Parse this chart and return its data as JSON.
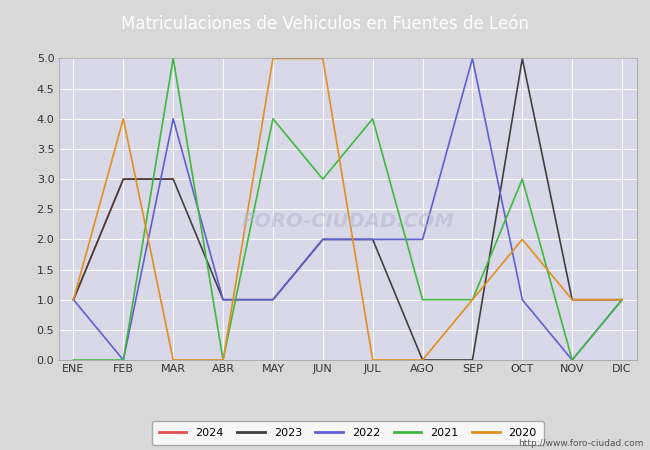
{
  "title": "Matriculaciones de Vehiculos en Fuentes de León",
  "months": [
    "ENE",
    "FEB",
    "MAR",
    "ABR",
    "MAY",
    "JUN",
    "JUL",
    "AGO",
    "SEP",
    "OCT",
    "NOV",
    "DIC"
  ],
  "series": {
    "2024": [
      1,
      3,
      3,
      null,
      null,
      null,
      null,
      null,
      null,
      null,
      null,
      null
    ],
    "2023": [
      1,
      3,
      3,
      1,
      1,
      2,
      2,
      0,
      0,
      5,
      1,
      1
    ],
    "2022": [
      1,
      0,
      4,
      1,
      1,
      2,
      2,
      2,
      5,
      1,
      0,
      1
    ],
    "2021": [
      0,
      0,
      5,
      0,
      4,
      3,
      4,
      1,
      1,
      3,
      0,
      1
    ],
    "2020": [
      1,
      4,
      0,
      0,
      5,
      5,
      0,
      0,
      1,
      2,
      1,
      1
    ]
  },
  "colors": {
    "2024": "#e05050",
    "2023": "#404040",
    "2022": "#6060d0",
    "2021": "#40b840",
    "2020": "#e09020"
  },
  "ylim": [
    0,
    5.0
  ],
  "yticks": [
    0.0,
    0.5,
    1.0,
    1.5,
    2.0,
    2.5,
    3.0,
    3.5,
    4.0,
    4.5,
    5.0
  ],
  "fig_bg_color": "#d8d8d8",
  "plot_bg_color": "#d8d8e8",
  "title_bg_color": "#4a80d0",
  "title_color": "white",
  "grid_color": "#ffffff",
  "watermark_text": "http://www.foro-ciudad.com",
  "watermark_center": "FORO-CIUDAD.COM",
  "title_fontsize": 12,
  "tick_fontsize": 8,
  "legend_fontsize": 8
}
